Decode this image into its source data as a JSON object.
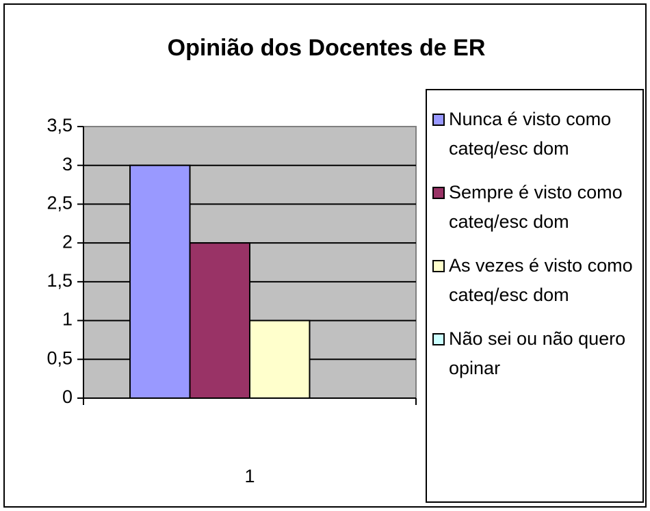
{
  "chart_data": {
    "type": "bar",
    "title": "Opinião dos Docentes de ER",
    "categories": [
      "1"
    ],
    "series": [
      {
        "name": "Nunca é visto como cateq/esc dom",
        "color": "#9999ff",
        "values": [
          3
        ]
      },
      {
        "name": "Sempre é visto como cateq/esc dom",
        "color": "#993366",
        "values": [
          2
        ]
      },
      {
        "name": "As vezes é visto como cateq/esc dom",
        "color": "#ffffcc",
        "values": [
          1
        ]
      },
      {
        "name": "Não sei ou não quero opinar",
        "color": "#ccffff",
        "values": [
          0
        ]
      }
    ],
    "ylim": [
      0,
      3.5
    ],
    "yticks": [
      0,
      {
        "value": 0.5,
        "label": "0,5"
      },
      1,
      {
        "value": 1.5,
        "label": "1,5"
      },
      2,
      {
        "value": 2.5,
        "label": "2,5"
      },
      3,
      {
        "value": 3.5,
        "label": "3,5"
      }
    ],
    "grid": true,
    "legend": "right"
  }
}
